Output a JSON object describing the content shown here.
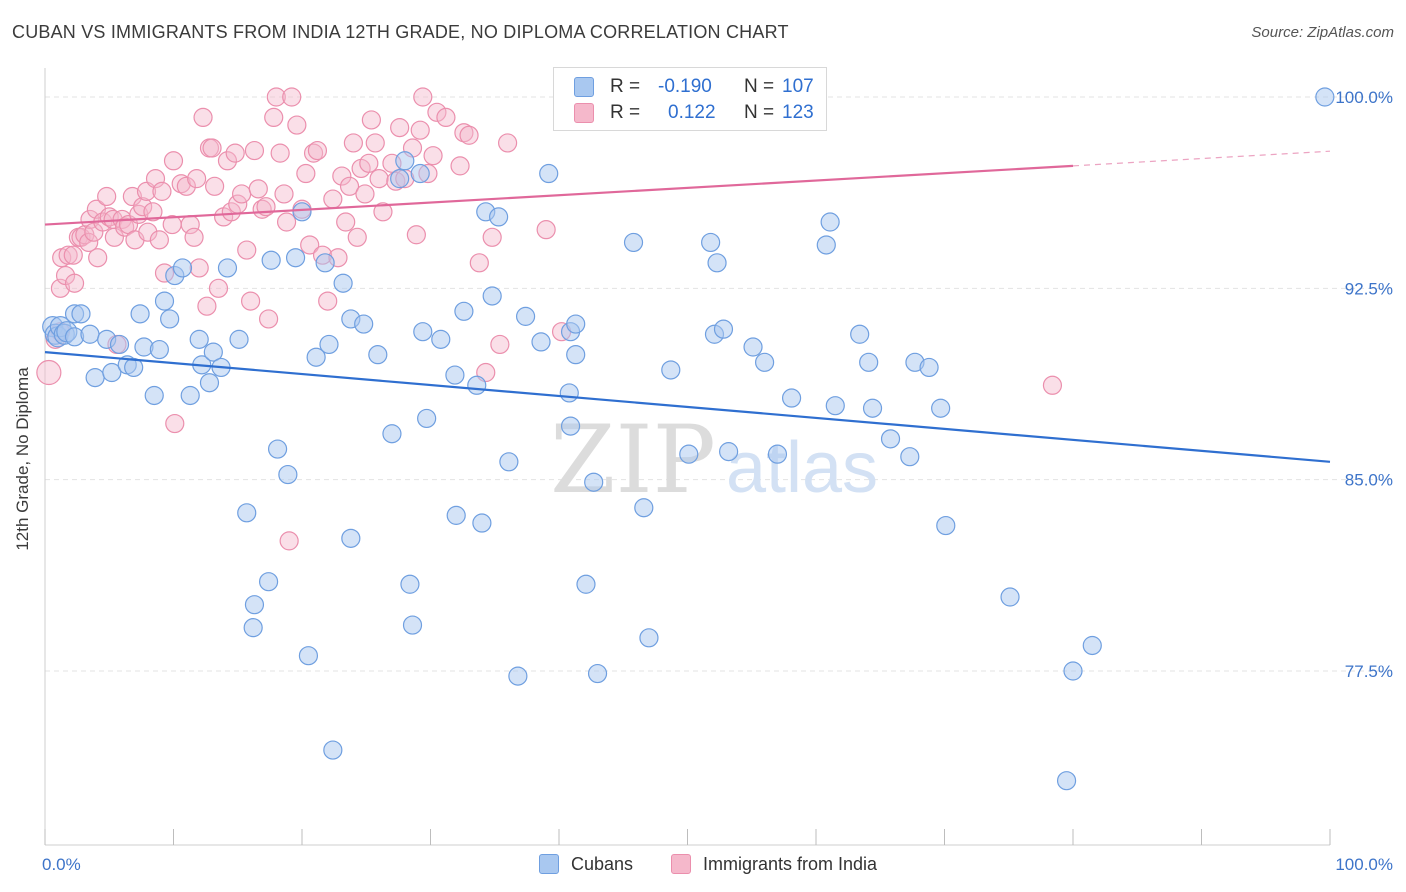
{
  "title": "CUBAN VS IMMIGRANTS FROM INDIA 12TH GRADE, NO DIPLOMA CORRELATION CHART",
  "source_prefix": "Source: ",
  "source_name": "ZipAtlas.com",
  "watermark": {
    "zip": "ZIP",
    "atlas": "atlas"
  },
  "colors": {
    "cubans_fill": "#a9c8f0",
    "cubans_stroke": "#6f9fe0",
    "cubans_line": "#2f6fd0",
    "india_fill": "#f5b8cb",
    "india_stroke": "#eb8fad",
    "india_line": "#e0689a",
    "tick_label": "#3d74c9",
    "grid": "#e3e3e3"
  },
  "legend": {
    "r_label": "R =",
    "n_label": "N =",
    "rows": [
      {
        "r": "-0.190",
        "n": "107"
      },
      {
        "r": "0.122",
        "n": "123"
      }
    ]
  },
  "bottom_legend": [
    "Cubans",
    "Immigrants from India"
  ],
  "chart_data": {
    "type": "scatter",
    "title": "CUBAN VS IMMIGRANTS FROM INDIA 12TH GRADE, NO DIPLOMA CORRELATION CHART",
    "xlabel": "",
    "ylabel": "12th Grade, No Diploma",
    "xlim": [
      0,
      100
    ],
    "ylim": [
      70.5,
      101.5
    ],
    "x_tick_labels": [
      "0.0%",
      "100.0%"
    ],
    "y_ticks": [
      77.5,
      85.0,
      92.5,
      100.0
    ],
    "y_tick_labels": [
      "77.5%",
      "85.0%",
      "92.5%",
      "100.0%"
    ],
    "grid": true,
    "legend_position": "top-center",
    "series": [
      {
        "name": "Cubans",
        "r": -0.19,
        "n": 107,
        "trend": {
          "x": [
            0,
            100
          ],
          "y": [
            90.0,
            85.7
          ]
        },
        "points": [
          [
            0.6,
            91.0
          ],
          [
            0.8,
            90.7
          ],
          [
            1.0,
            90.6
          ],
          [
            1.2,
            91.0
          ],
          [
            1.5,
            90.7
          ],
          [
            1.7,
            90.8
          ],
          [
            2.3,
            90.6
          ],
          [
            2.3,
            91.5
          ],
          [
            2.8,
            91.5
          ],
          [
            3.5,
            90.7
          ],
          [
            3.9,
            89.0
          ],
          [
            4.8,
            90.5
          ],
          [
            5.2,
            89.2
          ],
          [
            5.8,
            90.3
          ],
          [
            6.4,
            89.5
          ],
          [
            6.9,
            89.4
          ],
          [
            7.4,
            91.5
          ],
          [
            7.7,
            90.2
          ],
          [
            8.5,
            88.3
          ],
          [
            8.9,
            90.1
          ],
          [
            9.3,
            92.0
          ],
          [
            9.7,
            91.3
          ],
          [
            10.1,
            93.0
          ],
          [
            10.7,
            93.3
          ],
          [
            11.3,
            88.3
          ],
          [
            12.0,
            90.5
          ],
          [
            12.2,
            89.5
          ],
          [
            12.8,
            88.8
          ],
          [
            13.1,
            90.0
          ],
          [
            13.7,
            89.4
          ],
          [
            14.2,
            93.3
          ],
          [
            15.1,
            90.5
          ],
          [
            15.7,
            83.7
          ],
          [
            16.2,
            79.2
          ],
          [
            16.3,
            80.1
          ],
          [
            17.4,
            81.0
          ],
          [
            17.6,
            93.6
          ],
          [
            18.1,
            86.2
          ],
          [
            18.9,
            85.2
          ],
          [
            19.5,
            93.7
          ],
          [
            20.0,
            95.5
          ],
          [
            20.5,
            78.1
          ],
          [
            21.1,
            89.8
          ],
          [
            21.8,
            93.5
          ],
          [
            22.1,
            90.3
          ],
          [
            22.4,
            74.4
          ],
          [
            23.2,
            92.7
          ],
          [
            23.8,
            91.3
          ],
          [
            23.8,
            82.7
          ],
          [
            24.8,
            91.1
          ],
          [
            25.9,
            89.9
          ],
          [
            27.0,
            86.8
          ],
          [
            27.6,
            96.8
          ],
          [
            28.0,
            97.5
          ],
          [
            28.4,
            80.9
          ],
          [
            28.6,
            79.3
          ],
          [
            29.2,
            97.0
          ],
          [
            29.4,
            90.8
          ],
          [
            29.7,
            87.4
          ],
          [
            30.8,
            90.5
          ],
          [
            31.9,
            89.1
          ],
          [
            32.0,
            83.6
          ],
          [
            32.6,
            91.6
          ],
          [
            33.6,
            88.7
          ],
          [
            34.0,
            83.3
          ],
          [
            34.3,
            95.5
          ],
          [
            34.8,
            92.2
          ],
          [
            35.3,
            95.3
          ],
          [
            36.1,
            85.7
          ],
          [
            36.8,
            77.3
          ],
          [
            37.4,
            91.4
          ],
          [
            38.6,
            90.4
          ],
          [
            39.2,
            97.0
          ],
          [
            40.8,
            88.4
          ],
          [
            40.9,
            87.1
          ],
          [
            40.9,
            90.8
          ],
          [
            41.3,
            89.9
          ],
          [
            41.3,
            91.1
          ],
          [
            42.1,
            80.9
          ],
          [
            42.7,
            84.9
          ],
          [
            43.0,
            77.4
          ],
          [
            45.8,
            94.3
          ],
          [
            46.6,
            83.9
          ],
          [
            47.0,
            78.8
          ],
          [
            48.7,
            89.3
          ],
          [
            50.1,
            86.0
          ],
          [
            51.8,
            94.3
          ],
          [
            52.1,
            90.7
          ],
          [
            52.3,
            93.5
          ],
          [
            52.8,
            90.9
          ],
          [
            53.2,
            86.1
          ],
          [
            55.1,
            90.2
          ],
          [
            56.0,
            89.6
          ],
          [
            57.0,
            86.0
          ],
          [
            58.1,
            88.2
          ],
          [
            60.8,
            94.2
          ],
          [
            61.1,
            95.1
          ],
          [
            61.5,
            87.9
          ],
          [
            63.4,
            90.7
          ],
          [
            64.1,
            89.6
          ],
          [
            64.4,
            87.8
          ],
          [
            65.8,
            86.6
          ],
          [
            67.3,
            85.9
          ],
          [
            67.7,
            89.6
          ],
          [
            68.8,
            89.4
          ],
          [
            69.7,
            87.8
          ],
          [
            70.1,
            83.2
          ],
          [
            75.1,
            80.4
          ],
          [
            79.5,
            73.2
          ],
          [
            80.0,
            77.5
          ],
          [
            81.5,
            78.5
          ],
          [
            99.6,
            100.0
          ]
        ]
      },
      {
        "name": "Immigrants from India",
        "r": 0.122,
        "n": 123,
        "trend": {
          "x": [
            0,
            80
          ],
          "y": [
            95.0,
            97.3
          ]
        },
        "points": [
          [
            0.3,
            89.2
          ],
          [
            0.8,
            90.5
          ],
          [
            1.2,
            90.8
          ],
          [
            1.2,
            92.5
          ],
          [
            1.3,
            93.7
          ],
          [
            1.6,
            93.0
          ],
          [
            1.8,
            93.8
          ],
          [
            2.2,
            93.8
          ],
          [
            2.3,
            92.7
          ],
          [
            2.6,
            94.5
          ],
          [
            2.8,
            94.5
          ],
          [
            3.1,
            94.6
          ],
          [
            3.4,
            94.3
          ],
          [
            3.5,
            95.2
          ],
          [
            3.8,
            94.7
          ],
          [
            4.0,
            95.6
          ],
          [
            4.1,
            93.7
          ],
          [
            4.5,
            95.1
          ],
          [
            4.8,
            96.1
          ],
          [
            5.0,
            95.3
          ],
          [
            5.3,
            95.2
          ],
          [
            5.4,
            94.5
          ],
          [
            5.6,
            90.3
          ],
          [
            6.0,
            95.2
          ],
          [
            6.2,
            94.9
          ],
          [
            6.5,
            95.0
          ],
          [
            6.8,
            96.1
          ],
          [
            7.0,
            94.4
          ],
          [
            7.3,
            95.4
          ],
          [
            7.6,
            95.7
          ],
          [
            7.9,
            96.3
          ],
          [
            8.0,
            94.7
          ],
          [
            8.4,
            95.5
          ],
          [
            8.6,
            96.8
          ],
          [
            8.9,
            94.4
          ],
          [
            9.1,
            96.3
          ],
          [
            9.3,
            93.1
          ],
          [
            9.9,
            95.0
          ],
          [
            10.0,
            97.5
          ],
          [
            10.1,
            87.2
          ],
          [
            10.6,
            96.6
          ],
          [
            11.0,
            96.5
          ],
          [
            11.3,
            95.0
          ],
          [
            11.6,
            94.5
          ],
          [
            11.8,
            96.8
          ],
          [
            12.0,
            93.3
          ],
          [
            12.3,
            99.2
          ],
          [
            12.6,
            91.8
          ],
          [
            12.8,
            98.0
          ],
          [
            13.0,
            98.0
          ],
          [
            13.2,
            96.5
          ],
          [
            13.5,
            92.5
          ],
          [
            13.9,
            95.3
          ],
          [
            14.2,
            97.5
          ],
          [
            14.5,
            95.5
          ],
          [
            14.8,
            97.8
          ],
          [
            15.0,
            95.8
          ],
          [
            15.3,
            96.2
          ],
          [
            15.7,
            94.0
          ],
          [
            16.0,
            92.0
          ],
          [
            16.3,
            97.9
          ],
          [
            16.6,
            96.4
          ],
          [
            16.9,
            95.6
          ],
          [
            17.2,
            95.7
          ],
          [
            17.4,
            91.3
          ],
          [
            17.8,
            99.2
          ],
          [
            18.0,
            100.0
          ],
          [
            18.3,
            97.8
          ],
          [
            18.6,
            96.2
          ],
          [
            18.8,
            95.1
          ],
          [
            19.0,
            82.6
          ],
          [
            19.2,
            100.0
          ],
          [
            19.6,
            98.9
          ],
          [
            20.0,
            95.6
          ],
          [
            20.3,
            97.0
          ],
          [
            20.6,
            94.2
          ],
          [
            20.9,
            97.8
          ],
          [
            21.2,
            97.9
          ],
          [
            21.6,
            93.8
          ],
          [
            22.0,
            92.0
          ],
          [
            22.4,
            96.0
          ],
          [
            22.8,
            93.7
          ],
          [
            23.1,
            96.9
          ],
          [
            23.4,
            95.1
          ],
          [
            23.7,
            96.5
          ],
          [
            24.0,
            98.2
          ],
          [
            24.3,
            94.5
          ],
          [
            24.6,
            97.2
          ],
          [
            24.9,
            96.2
          ],
          [
            25.2,
            97.4
          ],
          [
            25.4,
            99.1
          ],
          [
            25.7,
            98.2
          ],
          [
            26.0,
            96.8
          ],
          [
            26.3,
            95.5
          ],
          [
            27.0,
            97.4
          ],
          [
            27.3,
            96.7
          ],
          [
            27.6,
            98.8
          ],
          [
            28.0,
            96.8
          ],
          [
            28.6,
            98.0
          ],
          [
            28.9,
            94.6
          ],
          [
            29.2,
            98.7
          ],
          [
            29.4,
            100.0
          ],
          [
            29.8,
            97.0
          ],
          [
            30.2,
            97.7
          ],
          [
            30.5,
            99.4
          ],
          [
            31.2,
            99.2
          ],
          [
            32.3,
            97.3
          ],
          [
            32.6,
            98.6
          ],
          [
            33.0,
            98.5
          ],
          [
            33.8,
            93.5
          ],
          [
            34.3,
            89.2
          ],
          [
            34.8,
            94.5
          ],
          [
            35.4,
            90.3
          ],
          [
            36.0,
            98.2
          ],
          [
            39.0,
            94.8
          ],
          [
            40.2,
            90.8
          ],
          [
            78.4,
            88.7
          ]
        ]
      }
    ]
  }
}
